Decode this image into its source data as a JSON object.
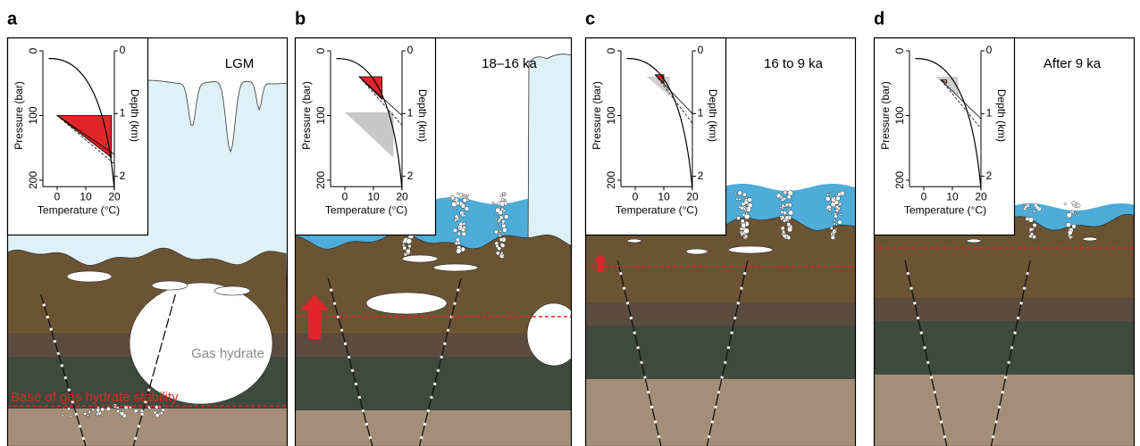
{
  "panels": [
    {
      "letter": "a",
      "title": "LGM",
      "annotations": {
        "hydrate": "Gas hydrate",
        "base": "Base of gas hydrate stability"
      }
    },
    {
      "letter": "b",
      "title": "18–16 ka"
    },
    {
      "letter": "c",
      "title": "16 to 9 ka"
    },
    {
      "letter": "d",
      "title": "After 9 ka"
    }
  ],
  "inset": {
    "x_label": "Temperature (°C)",
    "y_label": "Pressure (bar)",
    "y2_label": "Depth (km)",
    "x_ticks": [
      "0",
      "10",
      "20"
    ],
    "y_ticks": [
      "0",
      "100",
      "200"
    ],
    "y2_ticks": [
      "0",
      "1",
      "2"
    ]
  }
}
